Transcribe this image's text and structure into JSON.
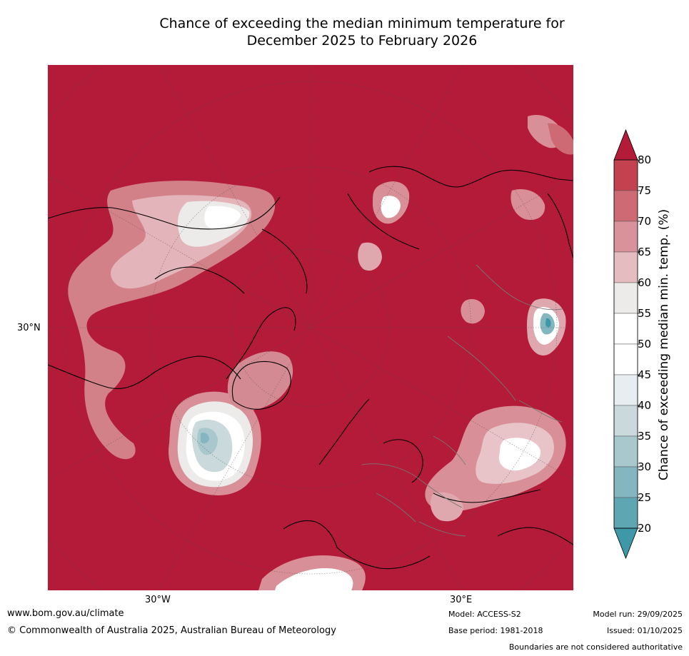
{
  "title": {
    "line1": "Chance of exceeding the median minimum temperature for",
    "line2": "December 2025 to February 2026"
  },
  "map": {
    "projection": "north polar stereographic",
    "latitude_labels": [
      "30°N"
    ],
    "longitude_labels": [
      "30°W",
      "30°E"
    ],
    "background_color": "#b31b38"
  },
  "colorbar": {
    "label": "Chance of exceeding median min. temp. (%)",
    "ticks": [
      "80",
      "75",
      "70",
      "65",
      "60",
      "55",
      "50",
      "45",
      "40",
      "35",
      "30",
      "25",
      "20"
    ],
    "colors": [
      "#b31b38",
      "#c44150",
      "#ce6a73",
      "#d99299",
      "#e5bcc0",
      "#ecebe9",
      "#ffffff",
      "#ffffff",
      "#e7edf0",
      "#c9d9dc",
      "#a9c8cd",
      "#84b6c0",
      "#5fa6b3",
      "#3f98a8"
    ]
  },
  "footer": {
    "website": "www.bom.gov.au/climate",
    "copyright": "© Commonwealth of Australia 2025, Australian Bureau of Meteorology",
    "model": "Model: ACCESS-S2",
    "base_period": "Base period: 1981-2018",
    "model_run": "Model run: 29/09/2025",
    "issued": "Issued: 01/10/2025",
    "disclaimer": "Boundaries are not considered authoritative"
  }
}
